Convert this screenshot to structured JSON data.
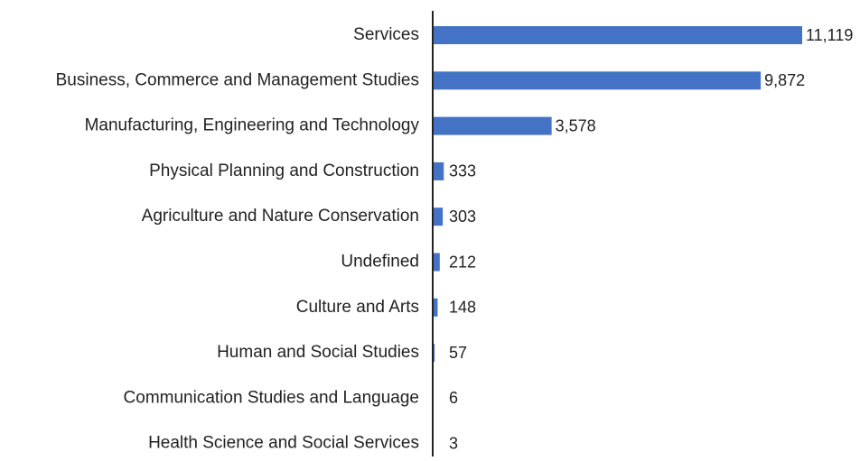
{
  "chart_data": {
    "type": "bar",
    "orientation": "horizontal",
    "categories": [
      "Services",
      "Business, Commerce and Management Studies",
      "Manufacturing, Engineering and Technology",
      "Physical Planning and Construction",
      "Agriculture and Nature Conservation",
      "Undefined",
      "Culture and Arts",
      "Human and Social Studies",
      "Communication Studies and Language",
      "Health Science and Social Services"
    ],
    "values": [
      11119,
      9872,
      3578,
      333,
      303,
      212,
      148,
      57,
      6,
      3
    ],
    "value_labels": [
      "11,119",
      "9,872",
      "3,578",
      "333",
      "303",
      "212",
      "148",
      "57",
      "6",
      "3"
    ],
    "color": "#4472c4"
  }
}
